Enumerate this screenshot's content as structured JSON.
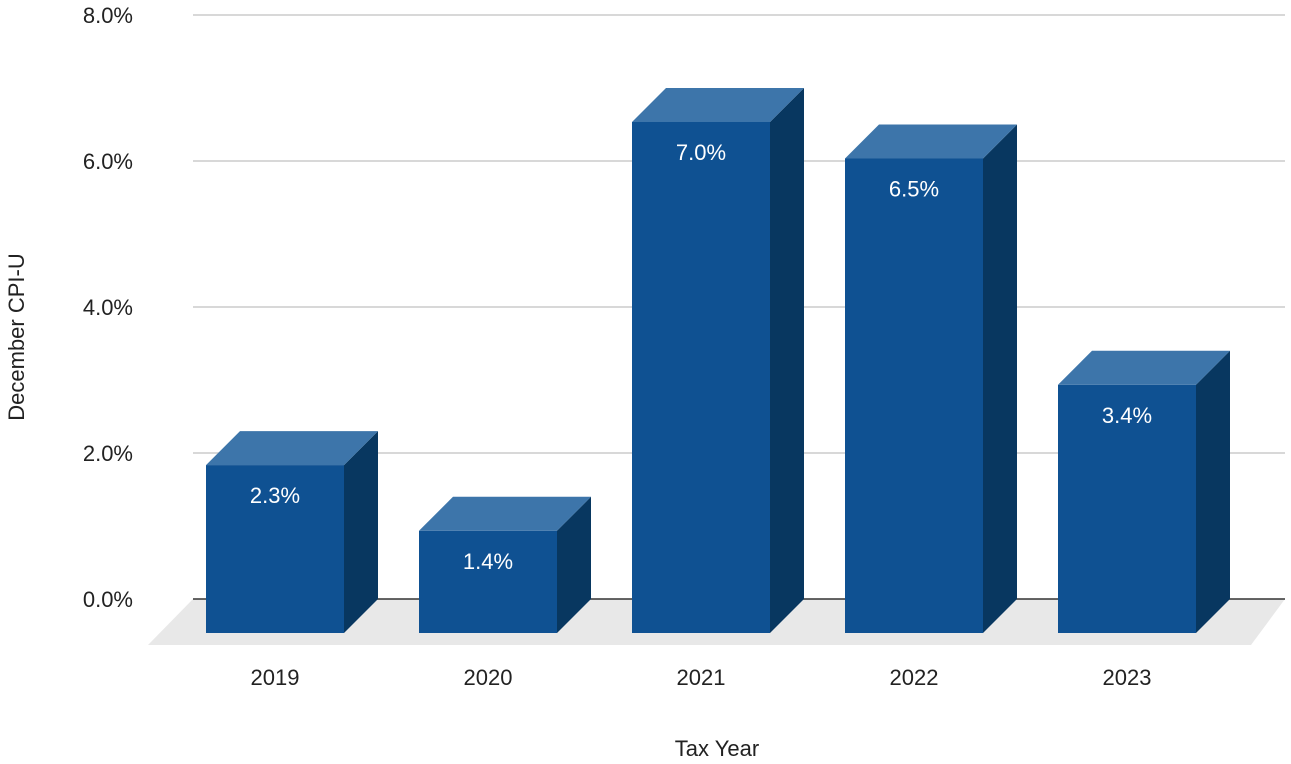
{
  "chart_data": {
    "type": "bar",
    "style": "3d",
    "categories": [
      "2019",
      "2020",
      "2021",
      "2022",
      "2023"
    ],
    "values": [
      2.3,
      1.4,
      7.0,
      6.5,
      3.4
    ],
    "data_labels": [
      "2.3%",
      "1.4%",
      "7.0%",
      "6.5%",
      "3.4%"
    ],
    "title": "",
    "xlabel": "Tax Year",
    "ylabel": "December CPI-U",
    "ylim": [
      0,
      8
    ],
    "y_ticks": [
      "0.0%",
      "2.0%",
      "4.0%",
      "6.0%",
      "8.0%"
    ],
    "grid": true,
    "legend": "none",
    "colors": {
      "bar_front": "#0f5192",
      "bar_top": "#3d75aa",
      "bar_side": "#083760",
      "floor": "#e8e8e8",
      "gridline": "#cccccc",
      "baseline": "#333333"
    }
  }
}
